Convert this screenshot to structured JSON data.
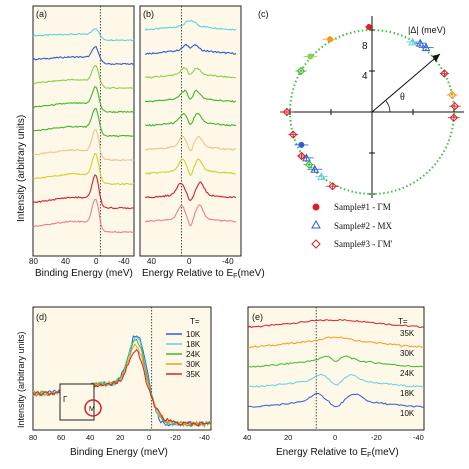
{
  "colors": {
    "panel_bg": "#fdf8e8",
    "cyan": "#5fd3e0",
    "blue": "#2f5bd8",
    "green_light": "#8ad24a",
    "green": "#3fb82e",
    "peach": "#f2c28c",
    "yellow": "#d6cf2a",
    "red": "#d81f2a",
    "pink": "#ef7f8f",
    "orange": "#f39a1f",
    "dotted_circle": "#40c040"
  },
  "chart_data": [
    {
      "panel": "(a)",
      "type": "line",
      "xlabel": "Binding Energy (meV)",
      "ylabel": "Intensity (arbitrary units)",
      "xlim": [
        80,
        -40
      ],
      "x_ticks": [
        "80",
        "40",
        "0",
        "-40"
      ],
      "reference_line": 0,
      "series_colors": [
        "cyan",
        "blue",
        "green_light",
        "green",
        "green",
        "peach",
        "yellow",
        "red",
        "pink"
      ],
      "shape": {
        "peak_x": 5,
        "peak_heights": [
          0.3,
          0.5,
          0.7,
          0.8,
          0.9,
          1.0,
          1.0,
          1.1,
          1.1
        ]
      }
    },
    {
      "panel": "(b)",
      "type": "line",
      "xlabel": "Energy Relative to E",
      "xlabel_sub": "F",
      "xlabel_unit": "(meV)",
      "x_ticks": [
        "40",
        "0",
        "-40"
      ],
      "reference_line": 9,
      "series_colors": [
        "cyan",
        "blue",
        "green_light",
        "green",
        "green",
        "peach",
        "yellow",
        "red",
        "pink"
      ],
      "shape": {
        "gap": [
          2,
          4,
          6,
          6,
          7,
          8,
          8,
          10,
          9
        ]
      }
    },
    {
      "panel": "(c)",
      "type": "scatter",
      "axis_label": "|Δ| (meV)",
      "angle_label": "θ",
      "r_ticks": [
        "4",
        "8"
      ],
      "circle_radius": 8,
      "legend": [
        {
          "label": "Sample#1 - ΓM",
          "marker": "circle-filled",
          "color": "red"
        },
        {
          "label": "Sample#2 - MX",
          "marker": "triangle-open",
          "color": "blue"
        },
        {
          "label": "Sample#3 - ΓM'",
          "marker": "diamond-open",
          "color": "red"
        }
      ],
      "points": [
        {
          "angle_deg": 92,
          "r": 8.3,
          "marker": "circle-filled",
          "color": "red"
        },
        {
          "angle_deg": 120,
          "r": 8.2,
          "marker": "circle-filled",
          "color": "orange"
        },
        {
          "angle_deg": 138,
          "r": 8.1,
          "marker": "circle-filled",
          "color": "green_light"
        },
        {
          "angle_deg": 150,
          "r": 8.0,
          "marker": "diamond-open",
          "color": "green"
        },
        {
          "angle_deg": 55,
          "r": 8.2,
          "marker": "triangle-open",
          "color": "blue"
        },
        {
          "angle_deg": 50,
          "r": 8.2,
          "marker": "triangle-open",
          "color": "blue"
        },
        {
          "angle_deg": 60,
          "r": 7.9,
          "marker": "triangle-open",
          "color": "cyan"
        },
        {
          "angle_deg": 180,
          "r": 8.3,
          "marker": "diamond-open",
          "color": "red"
        },
        {
          "angle_deg": 4,
          "r": 8.1,
          "marker": "diamond-open",
          "color": "red"
        },
        {
          "angle_deg": -4,
          "r": 8.0,
          "marker": "diamond-open",
          "color": "red"
        },
        {
          "angle_deg": 196,
          "r": 8.0,
          "marker": "diamond-open",
          "color": "red"
        },
        {
          "angle_deg": 205,
          "r": 7.6,
          "marker": "circle-filled",
          "color": "blue"
        },
        {
          "angle_deg": 215,
          "r": 7.8,
          "marker": "triangle-open",
          "color": "blue"
        },
        {
          "angle_deg": 225,
          "r": 7.9,
          "marker": "triangle-open",
          "color": "blue"
        },
        {
          "angle_deg": 232,
          "r": 8.0,
          "marker": "triangle-open",
          "color": "cyan"
        },
        {
          "angle_deg": 220,
          "r": 8.0,
          "marker": "diamond-open",
          "color": "green"
        },
        {
          "angle_deg": 212,
          "r": 8.1,
          "marker": "diamond-open",
          "color": "red"
        },
        {
          "angle_deg": 242,
          "r": 8.2,
          "marker": "diamond-open",
          "color": "red"
        },
        {
          "angle_deg": 28,
          "r": 8.0,
          "marker": "diamond-open",
          "color": "red"
        },
        {
          "angle_deg": 12,
          "r": 8.0,
          "marker": "diamond-open",
          "color": "orange"
        }
      ]
    },
    {
      "panel": "(d)",
      "type": "line",
      "xlabel": "Binding Energy (meV)",
      "ylabel": "Intensity (arbitrary units)",
      "xlim": [
        80,
        -40
      ],
      "x_ticks": [
        "80",
        "60",
        "40",
        "20",
        "0",
        "-20",
        "-40"
      ],
      "reference_line": 0,
      "legend_title": "T=",
      "inset_labels": [
        "Γ",
        "M"
      ],
      "series": [
        {
          "name": "10K",
          "color": "blue",
          "peak": 1.0
        },
        {
          "name": "18K",
          "color": "cyan",
          "peak": 0.95
        },
        {
          "name": "24K",
          "color": "green",
          "peak": 0.9
        },
        {
          "name": "30K",
          "color": "orange",
          "peak": 0.82
        },
        {
          "name": "35K",
          "color": "red",
          "peak": 0.75
        }
      ]
    },
    {
      "panel": "(e)",
      "type": "line",
      "xlabel": "Energy Relative to E",
      "xlabel_sub": "F",
      "xlabel_unit": "(meV)",
      "xlim": [
        40,
        -40
      ],
      "x_ticks": [
        "40",
        "20",
        "0",
        "-20",
        "-40"
      ],
      "reference_line": 9,
      "legend_title": "T=",
      "series": [
        {
          "name": "35K",
          "color": "red",
          "gap": 0
        },
        {
          "name": "30K",
          "color": "orange",
          "gap": 2
        },
        {
          "name": "24K",
          "color": "green",
          "gap": 4
        },
        {
          "name": "18K",
          "color": "cyan",
          "gap": 7
        },
        {
          "name": "10K",
          "color": "blue",
          "gap": 9
        }
      ]
    }
  ]
}
